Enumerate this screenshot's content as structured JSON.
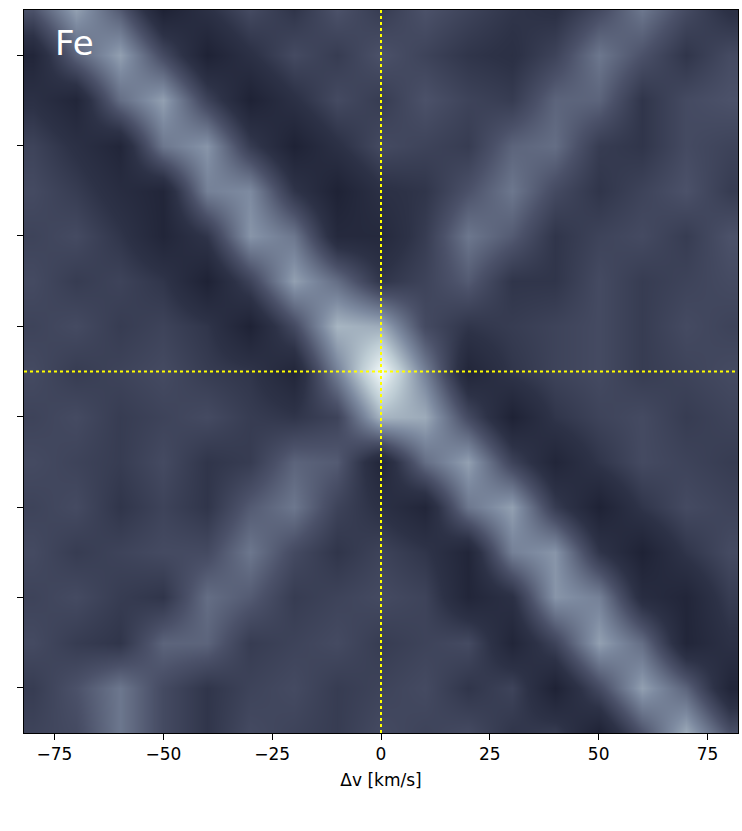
{
  "chart_data": {
    "type": "heatmap",
    "annotations": [
      {
        "text": "Fe"
      }
    ],
    "xlabel": "Δv [km/s]",
    "xlim": [
      -82,
      82
    ],
    "ylim": [
      -80,
      80
    ],
    "xticks": [
      {
        "value": -75,
        "label": "−75"
      },
      {
        "value": -50,
        "label": "−50"
      },
      {
        "value": -25,
        "label": "−25"
      },
      0,
      25,
      50,
      75
    ],
    "yticks": [
      -70,
      -50,
      -30,
      -10,
      10,
      30,
      50,
      70
    ],
    "tick_labels": "x",
    "grid": false,
    "vlines": [
      0
    ],
    "hlines": [
      0
    ],
    "zlim": [
      -0.5,
      1.0
    ],
    "x": [
      -80,
      -70,
      -60,
      -50,
      -40,
      -30,
      -20,
      -10,
      0,
      10,
      20,
      30,
      40,
      50,
      60,
      70,
      80
    ],
    "y": [
      -80,
      -70,
      -60,
      -50,
      -40,
      -30,
      -20,
      -10,
      0,
      10,
      20,
      30,
      40,
      50,
      60,
      70,
      80
    ],
    "z": [
      [
        0.0,
        0.05,
        0.3,
        0.05,
        -0.1,
        0.05,
        0.0,
        -0.05,
        0.05,
        0.0,
        0.05,
        -0.1,
        -0.05,
        -0.35,
        0.1,
        0.55,
        0.1
      ],
      [
        -0.05,
        0.1,
        0.3,
        0.05,
        -0.1,
        0.0,
        0.05,
        -0.05,
        0.0,
        0.05,
        -0.1,
        0.0,
        -0.35,
        0.05,
        0.5,
        0.2,
        -0.3
      ],
      [
        0.05,
        -0.05,
        -0.1,
        0.2,
        0.2,
        -0.05,
        0.0,
        0.05,
        -0.05,
        0.0,
        0.05,
        -0.3,
        0.0,
        0.5,
        0.25,
        -0.3,
        -0.15
      ],
      [
        0.0,
        0.05,
        -0.05,
        -0.1,
        0.25,
        0.15,
        -0.05,
        0.0,
        0.05,
        0.0,
        -0.3,
        -0.15,
        0.45,
        0.35,
        -0.2,
        -0.3,
        -0.05
      ],
      [
        0.05,
        -0.05,
        0.0,
        0.05,
        0.05,
        0.3,
        0.05,
        -0.1,
        0.0,
        -0.1,
        -0.3,
        0.35,
        0.45,
        -0.1,
        -0.35,
        -0.1,
        0.05
      ],
      [
        0.0,
        0.05,
        -0.1,
        0.0,
        -0.1,
        0.15,
        0.3,
        0.0,
        -0.15,
        -0.3,
        0.3,
        0.5,
        -0.05,
        -0.35,
        -0.1,
        0.05,
        0.0
      ],
      [
        0.05,
        0.0,
        -0.05,
        0.05,
        -0.1,
        -0.05,
        0.2,
        0.15,
        -0.3,
        0.25,
        0.5,
        0.0,
        -0.3,
        -0.1,
        0.05,
        0.0,
        -0.05
      ],
      [
        0.0,
        0.05,
        -0.05,
        0.0,
        0.05,
        -0.05,
        -0.1,
        0.0,
        0.6,
        0.55,
        0.05,
        -0.35,
        -0.1,
        0.0,
        0.05,
        -0.05,
        0.0
      ],
      [
        0.05,
        -0.05,
        0.0,
        0.05,
        -0.05,
        -0.1,
        -0.3,
        0.35,
        1.0,
        0.35,
        -0.3,
        -0.1,
        0.0,
        0.05,
        -0.05,
        0.0,
        0.05
      ],
      [
        0.0,
        0.05,
        -0.05,
        0.0,
        -0.1,
        -0.35,
        0.05,
        0.6,
        0.55,
        0.05,
        -0.1,
        -0.05,
        0.0,
        0.05,
        -0.05,
        0.05,
        0.0
      ],
      [
        0.05,
        -0.05,
        0.0,
        -0.1,
        -0.35,
        0.0,
        0.5,
        0.25,
        -0.1,
        0.0,
        0.15,
        -0.1,
        -0.1,
        0.05,
        -0.05,
        0.0,
        0.05
      ],
      [
        0.0,
        0.05,
        -0.1,
        -0.3,
        -0.1,
        0.45,
        0.3,
        -0.25,
        -0.25,
        -0.05,
        0.3,
        0.15,
        -0.1,
        0.0,
        0.05,
        -0.05,
        0.1
      ],
      [
        0.05,
        -0.05,
        -0.2,
        -0.3,
        0.35,
        0.4,
        -0.1,
        -0.35,
        -0.15,
        -0.1,
        0.1,
        0.3,
        0.05,
        -0.1,
        0.0,
        0.1,
        -0.05
      ],
      [
        0.0,
        -0.15,
        -0.3,
        0.3,
        0.45,
        -0.05,
        -0.35,
        -0.15,
        0.05,
        0.0,
        -0.05,
        0.2,
        0.25,
        -0.05,
        -0.1,
        0.05,
        0.0
      ],
      [
        -0.15,
        -0.3,
        0.25,
        0.5,
        0.0,
        -0.35,
        -0.15,
        0.05,
        -0.05,
        0.1,
        0.0,
        -0.05,
        0.2,
        0.2,
        -0.1,
        0.05,
        0.1
      ],
      [
        -0.3,
        0.2,
        0.5,
        0.05,
        -0.35,
        -0.15,
        0.05,
        -0.05,
        0.1,
        0.0,
        -0.1,
        -0.15,
        0.0,
        0.3,
        0.1,
        -0.1,
        0.05
      ],
      [
        0.1,
        0.5,
        0.15,
        -0.35,
        -0.15,
        0.05,
        -0.1,
        0.1,
        -0.05,
        0.1,
        0.0,
        -0.1,
        -0.15,
        0.05,
        0.3,
        0.05,
        -0.15
      ]
    ]
  }
}
